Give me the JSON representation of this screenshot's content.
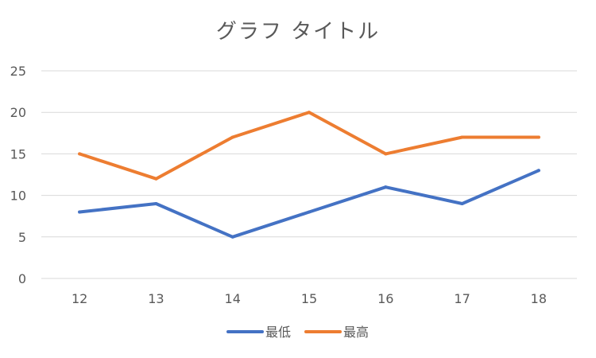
{
  "chart_data": {
    "type": "line",
    "title": "グラフ タイトル",
    "categories": [
      "12",
      "13",
      "14",
      "15",
      "16",
      "17",
      "18"
    ],
    "series": [
      {
        "name": "最低",
        "values": [
          8,
          9,
          5,
          8,
          11,
          9,
          13
        ],
        "color": "#4472C4"
      },
      {
        "name": "最高",
        "values": [
          15,
          12,
          17,
          20,
          15,
          17,
          17
        ],
        "color": "#ED7D31"
      }
    ],
    "y_ticks": [
      "0",
      "5",
      "10",
      "15",
      "20",
      "25"
    ],
    "ylim": [
      0,
      25
    ],
    "xlabel": "",
    "ylabel": "",
    "grid": true,
    "legend_position": "bottom"
  }
}
